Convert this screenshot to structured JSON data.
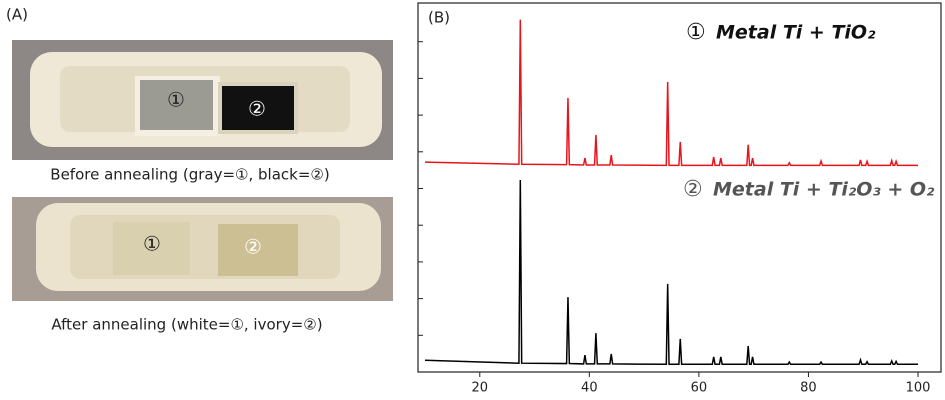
{
  "panel_a": {
    "label": "(A)",
    "photos": [
      {
        "caption": "Before annealing (gray=①, black=②)",
        "labels": [
          "①",
          "②"
        ]
      },
      {
        "caption": "After annealing (white=①, ivory=②)",
        "labels": [
          "①",
          "②"
        ]
      }
    ]
  },
  "chart_data": {
    "type": "line",
    "panel_label": "(B)",
    "x": [
      10,
      27.15,
      27.4,
      27.65,
      35.85,
      36.1,
      36.35,
      38.95,
      39.2,
      39.45,
      40.95,
      41.2,
      41.45,
      43.75,
      44,
      44.25,
      54.05,
      54.3,
      54.55,
      56.35,
      56.6,
      56.85,
      62.45,
      62.7,
      62.95,
      63.75,
      64,
      64.25,
      68.75,
      69,
      69.25,
      69.55,
      69.8,
      70.05,
      76.25,
      76.5,
      76.75,
      82.05,
      82.3,
      82.55,
      89.25,
      89.5,
      89.75,
      90.45,
      90.7,
      90.95,
      94.95,
      95.2,
      95.45,
      95.75,
      96,
      96.25,
      100
    ],
    "series": [
      {
        "name": "Metal Ti + TiO₂",
        "marker": "①",
        "color": "#e8141c",
        "label_color": "#111111",
        "values": [
          57.2,
          56.6,
          96,
          56.6,
          56.5,
          74.7,
          56.5,
          56.4,
          58.3,
          56.4,
          56.4,
          64.6,
          56.4,
          56.4,
          59.1,
          56.4,
          56.3,
          79,
          56.3,
          56.3,
          62.7,
          56.3,
          56.3,
          58.6,
          56.3,
          56.3,
          58.3,
          56.3,
          56.3,
          61.9,
          56.3,
          56.3,
          58.3,
          56.3,
          56.3,
          57,
          56.3,
          56.3,
          57.5,
          56.3,
          56.3,
          57.8,
          56.3,
          56.3,
          57.4,
          56.3,
          56.3,
          57.6,
          56.3,
          56.3,
          57.4,
          56.3,
          56.3
        ]
      },
      {
        "name": "Metal Ti + Ti₂O₃ + O₂",
        "marker": "②",
        "color": "#000000",
        "label_color": "#555555",
        "values": [
          3.2,
          2.4,
          52.3,
          2.4,
          2.3,
          20.4,
          2.3,
          2.2,
          4.6,
          2.2,
          2.2,
          10.6,
          2.2,
          2.2,
          4.9,
          2.2,
          2.1,
          24,
          2.1,
          2.1,
          9,
          2.1,
          2.1,
          4.1,
          2.1,
          2.1,
          4.1,
          2.1,
          2.1,
          7.1,
          2.1,
          2.1,
          4.1,
          2.1,
          2.1,
          2.7,
          2.1,
          2.1,
          2.7,
          2.1,
          2.1,
          3.3,
          2.1,
          2.1,
          2.8,
          2.1,
          2.1,
          3,
          2.1,
          2.1,
          2.9,
          2.1,
          2.1
        ]
      }
    ],
    "xlim": [
      10,
      100
    ],
    "xticks": [
      20,
      40,
      60,
      80,
      100
    ],
    "ylim": [
      0,
      100
    ],
    "yticks": [
      10,
      20,
      30,
      40,
      50,
      60,
      70,
      80,
      90
    ]
  }
}
